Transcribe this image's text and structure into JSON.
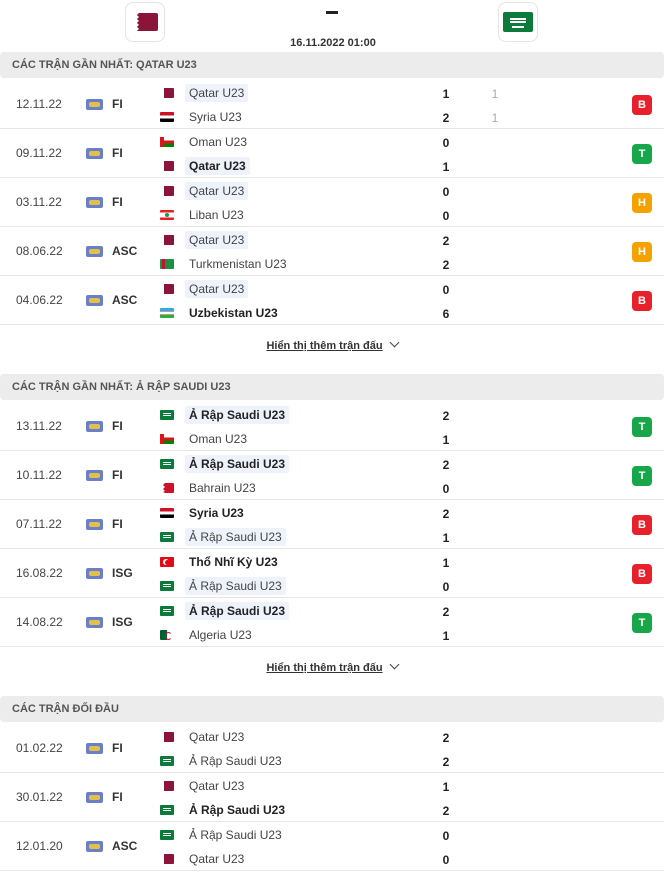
{
  "header": {
    "home_flag": "qatar",
    "away_flag": "saudi",
    "match_time": "16.11.2022 01:00"
  },
  "sections": [
    {
      "title": "Các trận gần nhất: Qatar U23",
      "show_more": "Hiển thị thêm trận đấu",
      "matches": [
        {
          "date": "12.11.22",
          "comp": "FI",
          "home": {
            "name": "Qatar U23",
            "flag": "qatar",
            "hl": true,
            "win": false
          },
          "away": {
            "name": "Syria U23",
            "flag": "syria",
            "hl": false,
            "win": false
          },
          "home_goals": "1",
          "away_goals": "2",
          "home_ht": "1",
          "away_ht": "1",
          "result": "B"
        },
        {
          "date": "09.11.22",
          "comp": "FI",
          "home": {
            "name": "Oman U23",
            "flag": "oman",
            "hl": false,
            "win": false
          },
          "away": {
            "name": "Qatar U23",
            "flag": "qatar",
            "hl": true,
            "win": true
          },
          "home_goals": "0",
          "away_goals": "1",
          "home_ht": "",
          "away_ht": "",
          "result": "T"
        },
        {
          "date": "03.11.22",
          "comp": "FI",
          "home": {
            "name": "Qatar U23",
            "flag": "qatar",
            "hl": true,
            "win": false
          },
          "away": {
            "name": "Liban U23",
            "flag": "liban",
            "hl": false,
            "win": false
          },
          "home_goals": "0",
          "away_goals": "0",
          "home_ht": "",
          "away_ht": "",
          "result": "H"
        },
        {
          "date": "08.06.22",
          "comp": "ASC",
          "home": {
            "name": "Qatar U23",
            "flag": "qatar",
            "hl": true,
            "win": false
          },
          "away": {
            "name": "Turkmenistan U23",
            "flag": "turkmen",
            "hl": false,
            "win": false
          },
          "home_goals": "2",
          "away_goals": "2",
          "home_ht": "",
          "away_ht": "",
          "result": "H"
        },
        {
          "date": "04.06.22",
          "comp": "ASC",
          "home": {
            "name": "Qatar U23",
            "flag": "qatar",
            "hl": true,
            "win": false
          },
          "away": {
            "name": "Uzbekistan U23",
            "flag": "uzbek",
            "hl": false,
            "win": true
          },
          "home_goals": "0",
          "away_goals": "6",
          "home_ht": "",
          "away_ht": "",
          "result": "B"
        }
      ]
    },
    {
      "title": "Các trận gần nhất: Ả Rập Saudi U23",
      "show_more": "Hiển thị thêm trận đấu",
      "matches": [
        {
          "date": "13.11.22",
          "comp": "FI",
          "home": {
            "name": "Ả Rập Saudi U23",
            "flag": "saudi",
            "hl": true,
            "win": true
          },
          "away": {
            "name": "Oman U23",
            "flag": "oman",
            "hl": false,
            "win": false
          },
          "home_goals": "2",
          "away_goals": "1",
          "home_ht": "",
          "away_ht": "",
          "result": "T"
        },
        {
          "date": "10.11.22",
          "comp": "FI",
          "home": {
            "name": "Ả Rập Saudi U23",
            "flag": "saudi",
            "hl": true,
            "win": true
          },
          "away": {
            "name": "Bahrain U23",
            "flag": "bahrain",
            "hl": false,
            "win": false
          },
          "home_goals": "2",
          "away_goals": "0",
          "home_ht": "",
          "away_ht": "",
          "result": "T"
        },
        {
          "date": "07.11.22",
          "comp": "FI",
          "home": {
            "name": "Syria U23",
            "flag": "syria",
            "hl": false,
            "win": true
          },
          "away": {
            "name": "Ả Rập Saudi U23",
            "flag": "saudi",
            "hl": true,
            "win": false
          },
          "home_goals": "2",
          "away_goals": "1",
          "home_ht": "",
          "away_ht": "",
          "result": "B"
        },
        {
          "date": "16.08.22",
          "comp": "ISG",
          "home": {
            "name": "Thổ Nhĩ Kỳ U23",
            "flag": "turkey",
            "hl": false,
            "win": true
          },
          "away": {
            "name": "Ả Rập Saudi U23",
            "flag": "saudi",
            "hl": true,
            "win": false
          },
          "home_goals": "1",
          "away_goals": "0",
          "home_ht": "",
          "away_ht": "",
          "result": "B"
        },
        {
          "date": "14.08.22",
          "comp": "ISG",
          "home": {
            "name": "Ả Rập Saudi U23",
            "flag": "saudi",
            "hl": true,
            "win": true
          },
          "away": {
            "name": "Algeria U23",
            "flag": "algeria",
            "hl": false,
            "win": false
          },
          "home_goals": "2",
          "away_goals": "1",
          "home_ht": "",
          "away_ht": "",
          "result": "T"
        }
      ]
    },
    {
      "title": "Các trận đối đầu",
      "show_more": "",
      "matches": [
        {
          "date": "01.02.22",
          "comp": "FI",
          "home": {
            "name": "Qatar U23",
            "flag": "qatar",
            "hl": false,
            "win": false
          },
          "away": {
            "name": "Ả Rập Saudi U23",
            "flag": "saudi",
            "hl": false,
            "win": false
          },
          "home_goals": "2",
          "away_goals": "2",
          "home_ht": "",
          "away_ht": "",
          "result": ""
        },
        {
          "date": "30.01.22",
          "comp": "FI",
          "home": {
            "name": "Qatar U23",
            "flag": "qatar",
            "hl": false,
            "win": false
          },
          "away": {
            "name": "Ả Rập Saudi U23",
            "flag": "saudi",
            "hl": false,
            "win": true
          },
          "home_goals": "1",
          "away_goals": "2",
          "home_ht": "",
          "away_ht": "",
          "result": ""
        },
        {
          "date": "12.01.20",
          "comp": "ASC",
          "home": {
            "name": "Ả Rập Saudi U23",
            "flag": "saudi",
            "hl": false,
            "win": false
          },
          "away": {
            "name": "Qatar U23",
            "flag": "qatar",
            "hl": false,
            "win": false
          },
          "home_goals": "0",
          "away_goals": "0",
          "home_ht": "",
          "away_ht": "",
          "result": ""
        }
      ]
    }
  ]
}
